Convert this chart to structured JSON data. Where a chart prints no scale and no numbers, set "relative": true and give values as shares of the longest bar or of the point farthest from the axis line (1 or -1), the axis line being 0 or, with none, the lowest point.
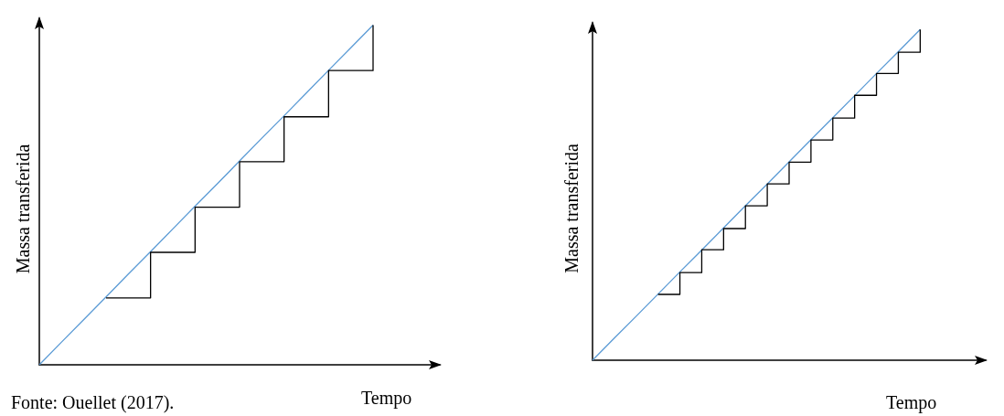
{
  "chart_data": [
    {
      "type": "line",
      "relative": true,
      "xlabel": "Tempo",
      "ylabel": "Massa transferida",
      "annotations": [
        "Fonte: Ouellet (2017)."
      ],
      "marker": "none",
      "categories": [
        null,
        null,
        null,
        null,
        null,
        null,
        null,
        null,
        null,
        null,
        null,
        null,
        null,
        null,
        null,
        null,
        null,
        null,
        null
      ],
      "series": [
        {
          "color": "#5b9bd5",
          "values": [
            0,
            0.067,
            0.133,
            0.2,
            0.267,
            0.333,
            0.4,
            0.467,
            0.533,
            0.6,
            0.667,
            0.733,
            0.8,
            0.867,
            0.933,
            1,
            null,
            null,
            null
          ]
        },
        {
          "type": "step",
          "color": "#000000",
          "values": [
            null,
            null,
            null,
            0.197,
            0.197,
            0.331,
            0.331,
            0.464,
            0.464,
            0.598,
            0.598,
            0.73,
            0.73,
            0.866,
            0.866,
            1,
            null,
            null,
            null
          ]
        }
      ]
    },
    {
      "type": "line",
      "relative": true,
      "xlabel": "Tempo",
      "ylabel": "Massa transferida",
      "marker": "none",
      "categories": [
        null,
        null,
        null,
        null,
        null,
        null,
        null,
        null,
        null,
        null,
        null,
        null,
        null,
        null,
        null,
        null,
        null,
        null,
        null
      ],
      "series": [
        {
          "color": "#5b9bd5",
          "values": [
            0,
            0.067,
            0.133,
            0.2,
            0.267,
            0.333,
            0.4,
            0.467,
            0.533,
            0.6,
            0.667,
            0.733,
            0.8,
            0.867,
            0.933,
            1,
            null,
            null,
            null
          ]
        },
        {
          "type": "step",
          "color": "#000000",
          "values": [
            null,
            null,
            null,
            0.199,
            0.265,
            0.334,
            0.398,
            0.467,
            0.533,
            0.599,
            0.666,
            0.732,
            0.801,
            0.867,
            0.931,
            1,
            null,
            null,
            null
          ]
        }
      ]
    }
  ]
}
